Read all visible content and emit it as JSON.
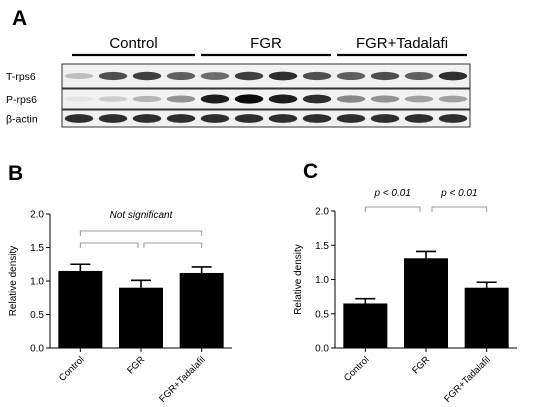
{
  "panel_a": {
    "label": "A",
    "groups": [
      {
        "name": "Control",
        "lanes": 4
      },
      {
        "name": "FGR",
        "lanes": 4
      },
      {
        "name": "FGR+Tadalafi",
        "lanes": 4
      }
    ],
    "rows": [
      {
        "label": "T-rps6",
        "intensity": [
          0.35,
          0.8,
          0.85,
          0.75,
          0.7,
          0.85,
          0.9,
          0.8,
          0.75,
          0.8,
          0.75,
          0.9
        ]
      },
      {
        "label": "P-rps6",
        "intensity": [
          0.05,
          0.25,
          0.4,
          0.55,
          0.95,
          1.0,
          0.95,
          0.9,
          0.6,
          0.55,
          0.5,
          0.5
        ]
      },
      {
        "label": "β-actin",
        "intensity": [
          0.9,
          0.9,
          0.9,
          0.9,
          0.9,
          0.9,
          0.9,
          0.9,
          0.9,
          0.9,
          0.9,
          0.9
        ]
      }
    ]
  },
  "chart_data": [
    {
      "panel_label": "B",
      "type": "bar",
      "categories": [
        "Control",
        "FGR",
        "FGR+Tadalafil"
      ],
      "values": [
        1.15,
        0.9,
        1.12
      ],
      "errors": [
        0.1,
        0.11,
        0.09
      ],
      "ylabel": "Relative density",
      "ylim": [
        0,
        2.0
      ],
      "yticks": [
        "0.0",
        "0.5",
        "1.0",
        "1.5",
        "2.0"
      ],
      "annotations": [
        {
          "text": "Not significant",
          "from": 0,
          "to": 2
        }
      ]
    },
    {
      "panel_label": "C",
      "type": "bar",
      "categories": [
        "Control",
        "FGR",
        "FGR+Tadalafil"
      ],
      "values": [
        0.65,
        1.31,
        0.88
      ],
      "errors": [
        0.07,
        0.1,
        0.08
      ],
      "ylabel": "Relative density",
      "ylim": [
        0,
        2.0
      ],
      "yticks": [
        "0.0",
        "0.5",
        "1.0",
        "1.5",
        "2.0"
      ],
      "annotations": [
        {
          "text": "p < 0.01",
          "from": 0,
          "to": 1
        },
        {
          "text": "p < 0.01",
          "from": 1,
          "to": 2
        }
      ]
    }
  ]
}
